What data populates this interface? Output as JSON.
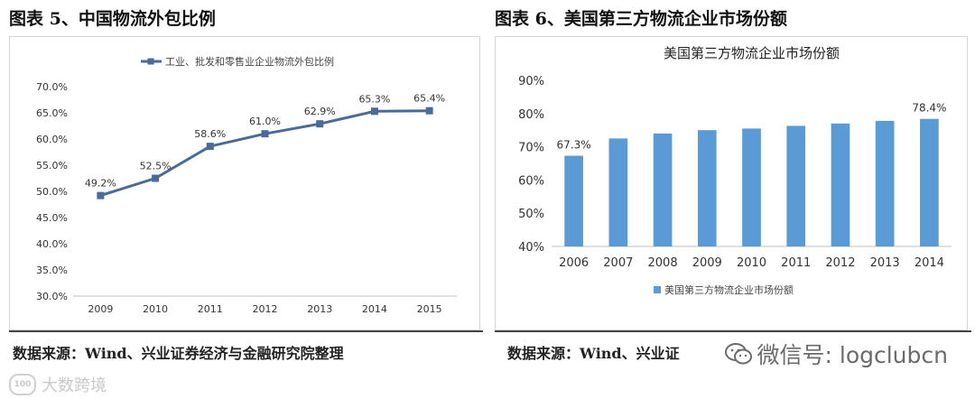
{
  "left": {
    "figure_title": "图表 5、中国物流外包比例",
    "source": "数据来源：Wind、兴业证券经济与金融研究院整理"
  },
  "right": {
    "figure_title": "图表 6、美国第三方物流企业市场份额",
    "source": "数据来源：Wind、兴业证"
  },
  "watermarks": {
    "bottom_left_text": "大数跨境",
    "bottom_left_logo": "100",
    "bottom_right_text": "微信号: logclubcn"
  },
  "colors": {
    "line": "#4a6a99",
    "bar": "#5b9bd5",
    "axis_text": "#333333",
    "grid": "#d9d9d9"
  },
  "chart_data": [
    {
      "type": "line",
      "title": "",
      "legend": "工业、批发和零售业企业物流外包比例",
      "legend_position": "top",
      "categories": [
        "2009",
        "2010",
        "2011",
        "2012",
        "2013",
        "2014",
        "2015"
      ],
      "values": [
        49.2,
        52.5,
        58.6,
        61.0,
        62.9,
        65.3,
        65.4
      ],
      "data_labels": [
        "49.2%",
        "52.5%",
        "58.6%",
        "61.0%",
        "62.9%",
        "65.3%",
        "65.4%"
      ],
      "y_ticks": [
        "70.0%",
        "65.0%",
        "60.0%",
        "55.0%",
        "50.0%",
        "45.0%",
        "40.0%",
        "35.0%",
        "30.0%"
      ],
      "ylim": [
        30,
        70
      ],
      "xlabel": "",
      "ylabel": "",
      "grid": false
    },
    {
      "type": "bar",
      "title": "美国第三方物流企业市场份额",
      "legend": "美国第三方物流企业市场份额",
      "legend_position": "bottom",
      "categories": [
        "2006",
        "2007",
        "2008",
        "2009",
        "2010",
        "2011",
        "2012",
        "2013",
        "2014"
      ],
      "values": [
        67.3,
        72.5,
        74.0,
        75.0,
        75.5,
        76.3,
        77.0,
        77.8,
        78.4
      ],
      "data_labels": [
        "67.3%",
        "",
        "",
        "",
        "",
        "",
        "",
        "",
        "78.4%"
      ],
      "y_ticks": [
        "90%",
        "80%",
        "70%",
        "60%",
        "50%",
        "40%"
      ],
      "ylim": [
        40,
        90
      ],
      "xlabel": "",
      "ylabel": "",
      "grid": false
    }
  ]
}
